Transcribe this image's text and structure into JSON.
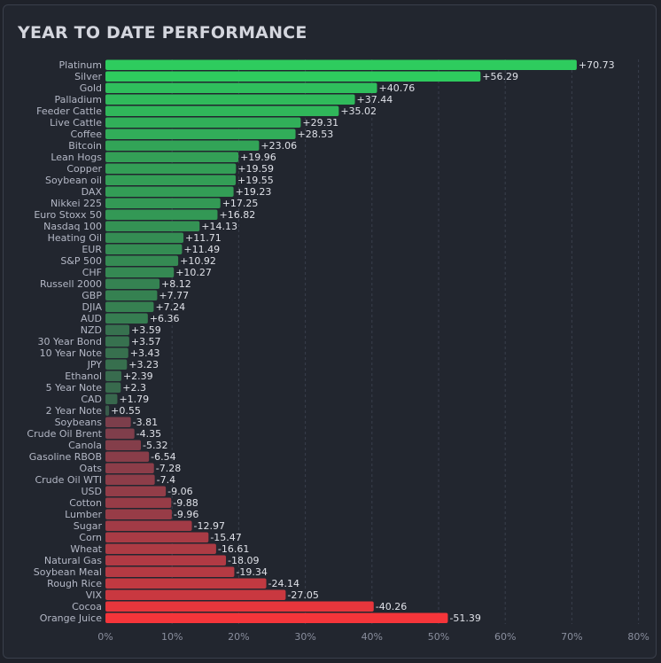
{
  "title": "YEAR TO DATE PERFORMANCE",
  "chart_data": {
    "type": "bar",
    "orientation": "horizontal",
    "title": "YEAR TO DATE PERFORMANCE",
    "xlabel": "",
    "ylabel": "",
    "xlim": [
      0,
      80
    ],
    "x_ticks": [
      "0%",
      "10%",
      "20%",
      "30%",
      "40%",
      "50%",
      "60%",
      "70%",
      "80%"
    ],
    "grid": "vertical-dashed",
    "bar_length": "absolute value",
    "categories": [
      "Platinum",
      "Silver",
      "Gold",
      "Palladium",
      "Feeder Cattle",
      "Live Cattle",
      "Coffee",
      "Bitcoin",
      "Lean Hogs",
      "Copper",
      "Soybean oil",
      "DAX",
      "Nikkei 225",
      "Euro Stoxx 50",
      "Nasdaq 100",
      "Heating Oil",
      "EUR",
      "S&P 500",
      "CHF",
      "Russell 2000",
      "GBP",
      "DJIA",
      "AUD",
      "NZD",
      "30 Year Bond",
      "10 Year Note",
      "JPY",
      "Ethanol",
      "5 Year Note",
      "CAD",
      "2 Year Note",
      "Soybeans",
      "Crude Oil Brent",
      "Canola",
      "Gasoline RBOB",
      "Oats",
      "Crude Oil WTI",
      "USD",
      "Cotton",
      "Lumber",
      "Sugar",
      "Corn",
      "Wheat",
      "Natural Gas",
      "Soybean Meal",
      "Rough Rice",
      "VIX",
      "Cocoa",
      "Orange Juice"
    ],
    "values": [
      70.73,
      56.29,
      40.76,
      37.44,
      35.02,
      29.31,
      28.53,
      23.06,
      19.96,
      19.59,
      19.55,
      19.23,
      17.25,
      16.82,
      14.13,
      11.71,
      11.49,
      10.92,
      10.27,
      8.12,
      7.77,
      7.24,
      6.36,
      3.59,
      3.57,
      3.43,
      3.23,
      2.39,
      2.3,
      1.79,
      0.55,
      -3.81,
      -4.35,
      -5.32,
      -6.54,
      -7.28,
      -7.4,
      -9.06,
      -9.88,
      -9.96,
      -12.97,
      -15.47,
      -16.61,
      -18.09,
      -19.34,
      -24.14,
      -27.05,
      -40.26,
      -51.39
    ],
    "value_labels": [
      "+70.73",
      "+56.29",
      "+40.76",
      "+37.44",
      "+35.02",
      "+29.31",
      "+28.53",
      "+23.06",
      "+19.96",
      "+19.59",
      "+19.55",
      "+19.23",
      "+17.25",
      "+16.82",
      "+14.13",
      "+11.71",
      "+11.49",
      "+10.92",
      "+10.27",
      "+8.12",
      "+7.77",
      "+7.24",
      "+6.36",
      "+3.59",
      "+3.57",
      "+3.43",
      "+3.23",
      "+2.39",
      "+2.3",
      "+1.79",
      "+0.55",
      "-3.81",
      "-4.35",
      "-5.32",
      "-6.54",
      "-7.28",
      "-7.4",
      "-9.06",
      "-9.88",
      "-9.96",
      "-12.97",
      "-15.47",
      "-16.61",
      "-18.09",
      "-19.34",
      "-24.14",
      "-27.05",
      "-40.26",
      "-51.39"
    ],
    "colors": {
      "positive_strong": "#2ecc5e",
      "positive_weak": "#3b4a48",
      "negative_weak": "#5a4150",
      "negative_strong": "#f5353a"
    }
  }
}
